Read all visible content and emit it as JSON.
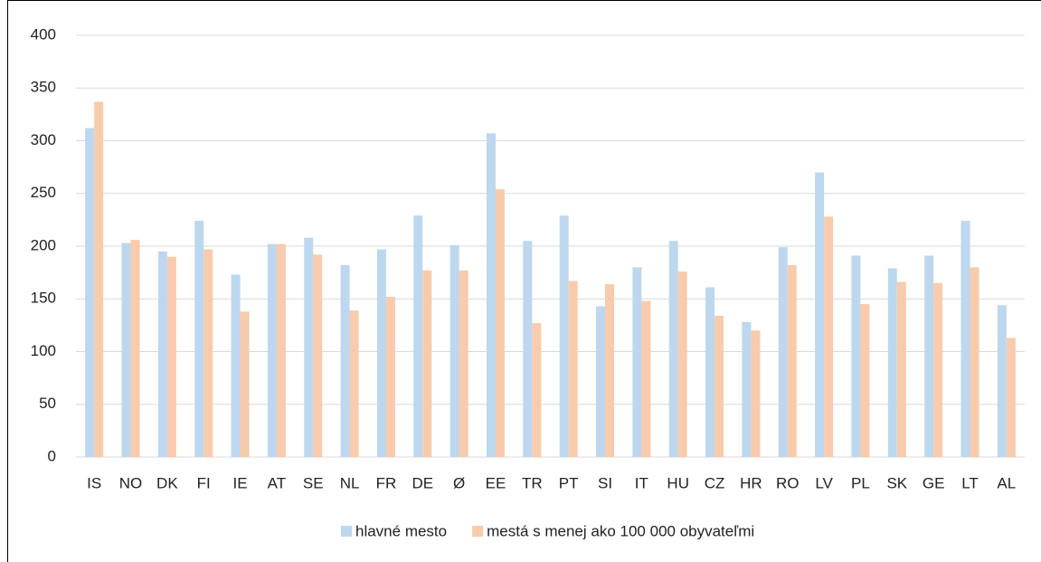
{
  "chart_data": {
    "type": "bar",
    "categories": [
      "IS",
      "NO",
      "DK",
      "FI",
      "IE",
      "AT",
      "SE",
      "NL",
      "FR",
      "DE",
      "Ø",
      "EE",
      "TR",
      "PT",
      "SI",
      "IT",
      "HU",
      "CZ",
      "HR",
      "RO",
      "LV",
      "PL",
      "SK",
      "GE",
      "LT",
      "AL"
    ],
    "series": [
      {
        "name": "hlavné mesto",
        "color": "#bdd7ee",
        "values": [
          312,
          203,
          195,
          224,
          173,
          202,
          208,
          182,
          197,
          229,
          201,
          307,
          205,
          229,
          143,
          180,
          205,
          161,
          128,
          199,
          270,
          191,
          179,
          191,
          224,
          144
        ]
      },
      {
        "name": "mestá s menej ako 100 000 obyvateľmi",
        "color": "#f8cbad",
        "values": [
          337,
          206,
          190,
          197,
          138,
          202,
          192,
          139,
          152,
          177,
          177,
          254,
          127,
          167,
          164,
          148,
          176,
          134,
          120,
          182,
          228,
          145,
          166,
          165,
          180,
          113
        ]
      }
    ],
    "ylim": [
      0,
      400
    ],
    "yticks": [
      0,
      50,
      100,
      150,
      200,
      250,
      300,
      350,
      400
    ],
    "grid": true,
    "legend": "bottom"
  }
}
